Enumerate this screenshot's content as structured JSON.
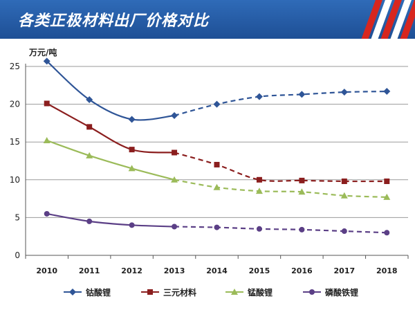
{
  "header": {
    "title": "各类正极材料出厂价格对比",
    "colors": {
      "background": "#2360a8",
      "stripe_red": "#d7261f",
      "stripe_white": "#ffffff"
    }
  },
  "chart_data": {
    "type": "line",
    "title": "各类正极材料出厂价格对比",
    "ylabel": "万元/吨",
    "xlabel": "",
    "x": [
      "2010",
      "2011",
      "2012",
      "2013",
      "2014",
      "2015",
      "2016",
      "2017",
      "2018"
    ],
    "ylim": [
      0,
      25
    ],
    "yticks": [
      0,
      5,
      10,
      15,
      20,
      25
    ],
    "grid": true,
    "legend_position": "bottom",
    "actual_through": "2013",
    "forecast_style": "dashed",
    "series": [
      {
        "name": "钴酸锂",
        "color": "#2f5597",
        "marker": "diamond",
        "values": [
          25.7,
          20.6,
          18.0,
          18.5,
          20.0,
          21.0,
          21.3,
          21.6,
          21.7
        ]
      },
      {
        "name": "三元材料",
        "color": "#8b1e1e",
        "marker": "square",
        "values": [
          20.1,
          17.0,
          14.0,
          13.6,
          12.0,
          10.0,
          9.9,
          9.8,
          9.8
        ]
      },
      {
        "name": "锰酸锂",
        "color": "#9bbb59",
        "marker": "triangle",
        "values": [
          15.2,
          13.2,
          11.5,
          10.0,
          9.0,
          8.5,
          8.4,
          7.9,
          7.7
        ]
      },
      {
        "name": "磷酸铁锂",
        "color": "#5b3f86",
        "marker": "circle",
        "values": [
          5.5,
          4.5,
          4.0,
          3.8,
          3.7,
          3.5,
          3.4,
          3.2,
          3.0
        ]
      }
    ]
  }
}
